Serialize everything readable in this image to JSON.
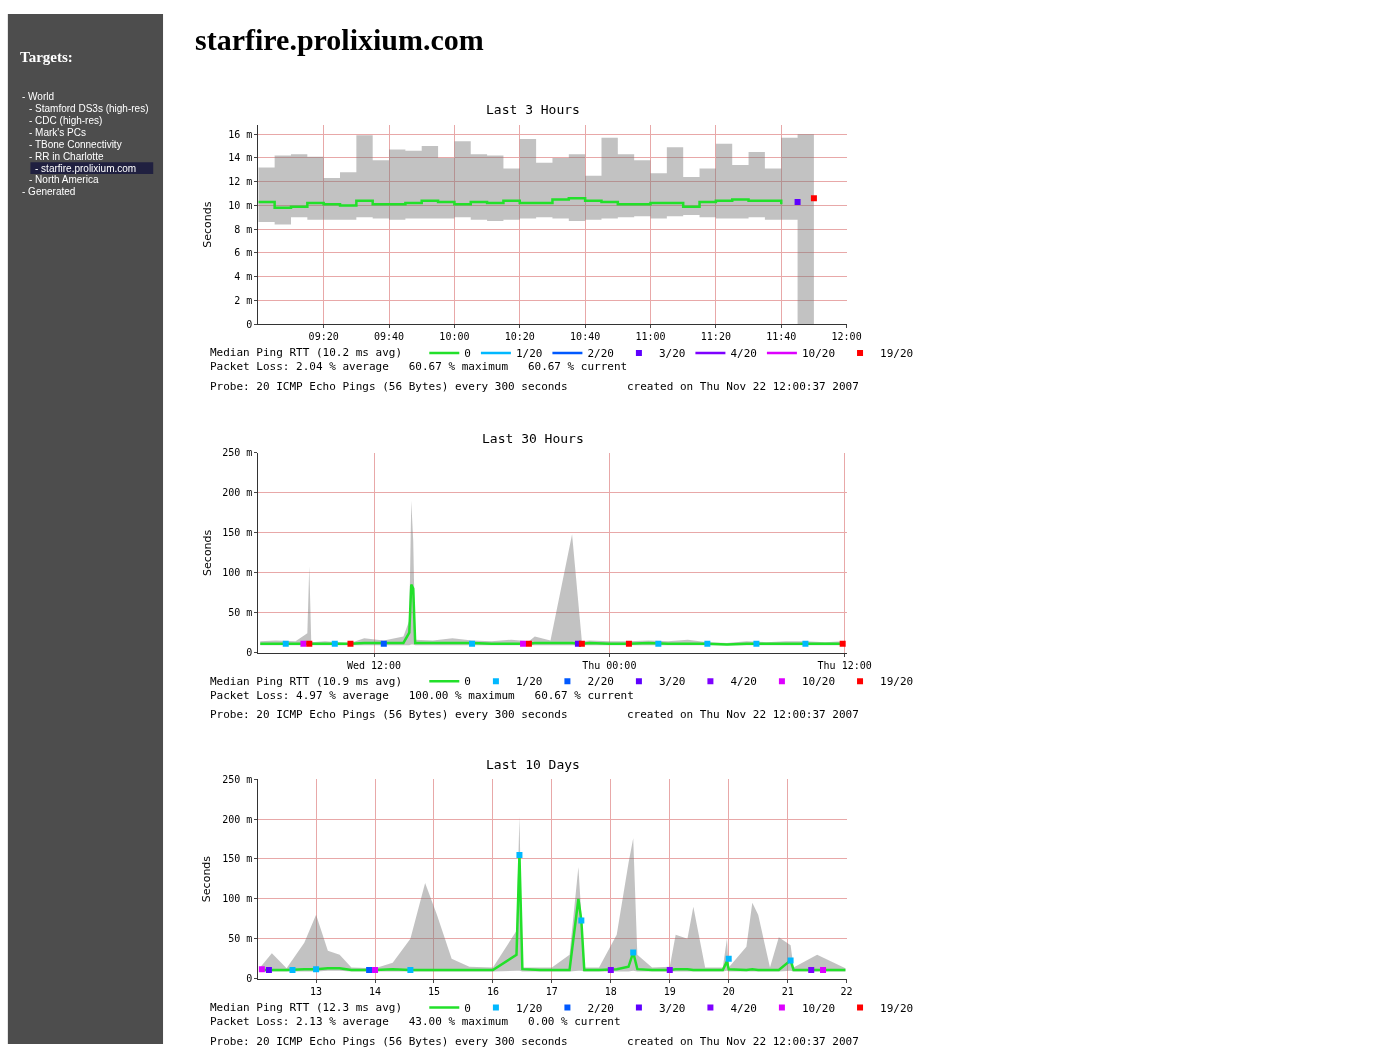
{
  "chart_data": [
    {
      "type": "other",
      "title": "Targets:",
      "annotations": [
        "- World",
        "- Stamford DS3s (high-res)",
        "- CDC (high-res)",
        "- Mark's PCs",
        "- TBone Connectivity",
        "- RR in Charlotte",
        "- starfire.prolixium.com",
        "- North America",
        "- Generated"
      ]
    },
    {
      "type": "step",
      "title": "starfire.prolixium.com",
      "subtitle": "Last 3 Hours",
      "ylabel": "Seconds",
      "x": [
        9.0,
        9.0833,
        9.1667,
        9.25,
        9.3333,
        9.4167,
        9.5,
        9.5833,
        9.6667,
        9.75,
        9.8333,
        9.9167,
        10.0,
        10.0833,
        10.1667,
        10.25,
        10.3333,
        10.4167,
        10.5,
        10.5833,
        10.6667,
        10.75,
        10.8333,
        10.9167,
        11.0,
        11.0833,
        11.1667,
        11.25,
        11.3333,
        11.4167,
        11.5,
        11.5833,
        11.6667,
        11.75,
        11.8333
      ],
      "xlim": [
        9.0,
        12.0
      ],
      "xticks": [
        {
          "value": 9.3333,
          "label": "09:20"
        },
        {
          "value": 9.6667,
          "label": "09:40"
        },
        {
          "value": 10,
          "label": "10:00"
        },
        {
          "value": 10.3333,
          "label": "10:20"
        },
        {
          "value": 10.6667,
          "label": "10:40"
        },
        {
          "value": 11,
          "label": "11:00"
        },
        {
          "value": 11.3333,
          "label": "11:20"
        },
        {
          "value": 11.6667,
          "label": "11:40"
        },
        {
          "value": 12,
          "label": "12:00"
        }
      ],
      "ylim": [
        0,
        16.8
      ],
      "yticks": [
        0,
        {
          "value": 2,
          "label": "2 m"
        },
        {
          "value": 4,
          "label": "4 m"
        },
        {
          "value": 6,
          "label": "6 m"
        },
        {
          "value": 8,
          "label": "8 m"
        },
        {
          "value": 10,
          "label": "10 m"
        },
        {
          "value": 12,
          "label": "12 m"
        },
        {
          "value": 14,
          "label": "14 m"
        },
        {
          "value": 16,
          "label": "16 m"
        }
      ],
      "series": [
        {
          "name": "0",
          "color": "#22e02a",
          "values": [
            10.3,
            9.8,
            9.9,
            10.2,
            10.1,
            10.0,
            10.4,
            10.1,
            10.1,
            10.2,
            10.4,
            10.3,
            10.1,
            10.3,
            10.2,
            10.4,
            10.2,
            10.2,
            10.5,
            10.6,
            10.4,
            10.3,
            10.1,
            10.1,
            10.2,
            10.2,
            9.9,
            10.3,
            10.4,
            10.5,
            10.4,
            10.4,
            10.1,
            null,
            null
          ],
          "lower": [
            9.0,
            8.6,
            8.4,
            9.0,
            8.8,
            8.8,
            8.8,
            9.0,
            8.9,
            8.8,
            8.9,
            8.9,
            8.9,
            9.0,
            8.8,
            8.7,
            8.8,
            8.9,
            9.0,
            8.9,
            8.7,
            8.8,
            8.9,
            9.0,
            9.1,
            8.9,
            9.1,
            9.2,
            9.0,
            8.9,
            8.9,
            9.0,
            8.8,
            8.8,
            0
          ],
          "upper": [
            13.2,
            14.2,
            14.3,
            14.1,
            12.3,
            12.8,
            15.9,
            13.8,
            14.7,
            14.6,
            15.0,
            14.0,
            15.4,
            14.3,
            14.2,
            13.1,
            15.6,
            13.6,
            14.0,
            14.3,
            12.5,
            15.7,
            14.3,
            13.8,
            12.7,
            14.9,
            12.4,
            13.1,
            15.2,
            13.4,
            14.5,
            13.1,
            15.7,
            16.0,
            14.0
          ]
        },
        {
          "name": "1/20",
          "color": "#00b8ff",
          "values": [
            null,
            null,
            null,
            null,
            null,
            null,
            null,
            null,
            null,
            null,
            null,
            null,
            null,
            null,
            null,
            null,
            null,
            null,
            null,
            null,
            null,
            null,
            null,
            null,
            null,
            null,
            null,
            null,
            null,
            null,
            null,
            null,
            null,
            null,
            null
          ]
        },
        {
          "name": "2/20",
          "color": "#0059ff",
          "values": [
            null,
            null,
            null,
            null,
            null,
            null,
            null,
            null,
            null,
            null,
            null,
            null,
            null,
            null,
            null,
            null,
            null,
            null,
            null,
            null,
            null,
            null,
            null,
            null,
            null,
            null,
            null,
            null,
            null,
            null,
            null,
            null,
            null,
            null,
            null
          ]
        },
        {
          "name": "3/20",
          "color": "#5e00ff",
          "type": "scatter",
          "marker": "square",
          "values": [
            null,
            null,
            null,
            null,
            null,
            null,
            null,
            null,
            null,
            null,
            null,
            null,
            null,
            null,
            null,
            null,
            null,
            null,
            null,
            null,
            null,
            null,
            null,
            null,
            null,
            null,
            null,
            null,
            null,
            null,
            null,
            null,
            null,
            10.3,
            null
          ]
        },
        {
          "name": "4/20",
          "color": "#7e00ff",
          "values": [
            null,
            null,
            null,
            null,
            null,
            null,
            null,
            null,
            null,
            null,
            null,
            null,
            null,
            null,
            null,
            null,
            null,
            null,
            null,
            null,
            null,
            null,
            null,
            null,
            null,
            null,
            null,
            null,
            null,
            null,
            null,
            null,
            null,
            null,
            null
          ]
        },
        {
          "name": "10/20",
          "color": "#dd00ff",
          "values": [
            null,
            null,
            null,
            null,
            null,
            null,
            null,
            null,
            null,
            null,
            null,
            null,
            null,
            null,
            null,
            null,
            null,
            null,
            null,
            null,
            null,
            null,
            null,
            null,
            null,
            null,
            null,
            null,
            null,
            null,
            null,
            null,
            null,
            null,
            null
          ]
        },
        {
          "name": "19/20",
          "color": "#ff0000",
          "type": "scatter",
          "marker": "square",
          "values": [
            null,
            null,
            null,
            null,
            null,
            null,
            null,
            null,
            null,
            null,
            null,
            null,
            null,
            null,
            null,
            null,
            null,
            null,
            null,
            null,
            null,
            null,
            null,
            null,
            null,
            null,
            null,
            null,
            null,
            null,
            null,
            null,
            null,
            null,
            10.6
          ]
        }
      ],
      "grid": true,
      "legend": "bottom",
      "annotations": [
        "Median Ping RTT (10.2 ms avg)",
        "Packet Loss: 2.04 % average   60.67 % maximum   60.67 % current",
        "Probe: 20 ICMP Echo Pings (56 Bytes) every 300 seconds",
        "created on Thu Nov 22 12:00:37 2007"
      ]
    },
    {
      "type": "line",
      "subtitle": "Last 30 Hours",
      "ylabel": "Seconds",
      "x": [
        "2007-11-21T06:12",
        "2007-11-21T07:00",
        "2007-11-21T08:00",
        "2007-11-21T08:36",
        "2007-11-21T08:42",
        "2007-11-21T08:48",
        "2007-11-21T09:30",
        "2007-11-21T10:48",
        "2007-11-21T11:30",
        "2007-11-21T12:30",
        "2007-11-21T13:30",
        "2007-11-21T13:48",
        "2007-11-21T13:54",
        "2007-11-21T14:00",
        "2007-11-21T14:06",
        "2007-11-21T15:00",
        "2007-11-21T16:00",
        "2007-11-21T17:00",
        "2007-11-21T18:00",
        "2007-11-21T19:00",
        "2007-11-21T19:54",
        "2007-11-21T20:12",
        "2007-11-21T21:00",
        "2007-11-21T22:06",
        "2007-11-21T22:36",
        "2007-11-21T23:00",
        "2007-11-22T00:00",
        "2007-11-22T01:00",
        "2007-11-22T02:00",
        "2007-11-22T03:00",
        "2007-11-22T04:00",
        "2007-11-22T05:00",
        "2007-11-22T06:00",
        "2007-11-22T07:00",
        "2007-11-22T08:00",
        "2007-11-22T09:00",
        "2007-11-22T10:00",
        "2007-11-22T11:00",
        "2007-11-22T11:54"
      ],
      "xlim": [
        "2007-11-21T06:06",
        "2007-11-22T12:06"
      ],
      "xticks": [
        {
          "value": "2007-11-21T12:00",
          "label": "Wed 12:00"
        },
        {
          "value": "2007-11-22T00:00",
          "label": "Thu 00:00"
        },
        {
          "value": "2007-11-22T12:00",
          "label": "Thu 12:00"
        }
      ],
      "ylim": [
        0,
        250
      ],
      "yticks": [
        0,
        {
          "value": 50,
          "label": "50 m"
        },
        {
          "value": 100,
          "label": "100 m"
        },
        {
          "value": 150,
          "label": "150 m"
        },
        {
          "value": 200,
          "label": "200 m"
        },
        {
          "value": 250,
          "label": "250 m"
        }
      ],
      "series": [
        {
          "name": "0",
          "color": "#22e02a",
          "values": [
            11,
            11,
            11,
            11,
            10,
            11,
            11,
            11,
            12,
            12,
            12,
            25,
            85,
            80,
            12,
            12,
            12,
            12,
            11,
            11,
            11,
            12,
            12,
            12,
            11,
            12,
            11,
            11,
            12,
            11,
            11,
            11,
            10,
            11,
            11,
            11,
            11,
            11,
            11
          ],
          "lower": [
            9,
            9,
            9,
            9,
            9,
            9,
            9,
            9,
            9,
            9,
            9,
            9,
            10,
            10,
            9,
            9,
            9,
            9,
            9,
            9,
            9,
            9,
            9,
            9,
            9,
            9,
            9,
            9,
            9,
            9,
            9,
            9,
            9,
            9,
            9,
            9,
            9,
            9,
            9
          ],
          "upper": [
            14,
            15,
            14,
            24,
            108,
            13,
            14,
            12,
            18,
            15,
            20,
            40,
            190,
            140,
            16,
            15,
            18,
            15,
            14,
            16,
            14,
            20,
            15,
            148,
            14,
            15,
            14,
            14,
            15,
            14,
            16,
            13,
            12,
            14,
            13,
            14,
            14,
            13,
            14
          ]
        },
        {
          "name": "1/20",
          "color": "#00b8ff",
          "type": "scatter",
          "marker": "square",
          "x": [
            "2007-11-21T07:30",
            "2007-11-21T10:00",
            "2007-11-21T17:00",
            "2007-11-22T02:30",
            "2007-11-22T05:00",
            "2007-11-22T07:30",
            "2007-11-22T10:00"
          ],
          "values": [
            11,
            11,
            11,
            11,
            11,
            11,
            11
          ]
        },
        {
          "name": "2/20",
          "color": "#0059ff",
          "type": "scatter",
          "marker": "square",
          "x": [
            "2007-11-21T12:30"
          ],
          "values": [
            11
          ]
        },
        {
          "name": "3/20",
          "color": "#5e00ff",
          "type": "scatter",
          "marker": "square",
          "x": [
            "2007-11-21T22:24"
          ],
          "values": [
            11
          ]
        },
        {
          "name": "4/20",
          "color": "#7e00ff",
          "type": "scatter",
          "marker": "square",
          "values": [
            null,
            null,
            null,
            null,
            null,
            null,
            null,
            null,
            null,
            null,
            null,
            null,
            null,
            null,
            null,
            null,
            null,
            null,
            null,
            null,
            null,
            null,
            null,
            null,
            null,
            null,
            null,
            null,
            null,
            null,
            null,
            null,
            null,
            null,
            null,
            null,
            null,
            null,
            null
          ]
        },
        {
          "name": "10/20",
          "color": "#dd00ff",
          "type": "scatter",
          "marker": "square",
          "x": [
            "2007-11-21T08:24",
            "2007-11-21T19:36"
          ],
          "values": [
            11,
            11
          ]
        },
        {
          "name": "19/20",
          "color": "#ff0000",
          "type": "scatter",
          "marker": "square",
          "x": [
            "2007-11-21T08:42",
            "2007-11-21T10:48",
            "2007-11-21T19:54",
            "2007-11-21T22:36",
            "2007-11-22T01:00",
            "2007-11-22T11:54"
          ],
          "values": [
            11,
            11,
            11,
            11,
            11,
            11
          ]
        }
      ],
      "grid": true,
      "legend": "bottom",
      "annotations": [
        "Median Ping RTT (10.9 ms avg)",
        "Packet Loss: 4.97 % average   100.00 % maximum   60.67 % current",
        "Probe: 20 ICMP Echo Pings (56 Bytes) every 300 seconds",
        "created on Thu Nov 22 12:00:37 2007"
      ]
    },
    {
      "type": "line",
      "subtitle": "Last 10 Days",
      "ylabel": "Seconds",
      "x": [
        12.05,
        12.25,
        12.5,
        12.8,
        13.0,
        13.2,
        13.4,
        13.6,
        14.0,
        14.3,
        14.6,
        14.85,
        15.05,
        15.3,
        15.6,
        16.0,
        16.4,
        16.45,
        16.5,
        16.8,
        17.0,
        17.3,
        17.45,
        17.5,
        17.55,
        17.8,
        18.1,
        18.3,
        18.38,
        18.45,
        18.7,
        19.0,
        19.1,
        19.3,
        19.4,
        19.6,
        19.9,
        19.97,
        20.0,
        20.3,
        20.4,
        20.5,
        20.7,
        20.85,
        21.05,
        21.1,
        21.5,
        21.98
      ],
      "xlim": [
        12.02,
        22
      ],
      "xticks": [
        13,
        14,
        15,
        16,
        17,
        18,
        19,
        20,
        21,
        22
      ],
      "ylim": [
        0,
        250
      ],
      "yticks": [
        0,
        {
          "value": 50,
          "label": "50 m"
        },
        {
          "value": 100,
          "label": "100 m"
        },
        {
          "value": 150,
          "label": "150 m"
        },
        {
          "value": 200,
          "label": "200 m"
        },
        {
          "value": 250,
          "label": "250 m"
        }
      ],
      "series": [
        {
          "name": "0",
          "color": "#22e02a",
          "values": [
            11,
            11,
            11,
            12,
            12,
            13,
            13,
            11,
            11,
            12,
            11,
            11,
            11,
            11,
            11,
            11,
            30,
            155,
            12,
            11,
            11,
            11,
            100,
            73,
            11,
            11,
            12,
            15,
            33,
            12,
            11,
            11,
            12,
            12,
            11,
            11,
            11,
            22,
            12,
            11,
            12,
            11,
            11,
            11,
            23,
            11,
            11,
            11
          ],
          "lower": [
            9,
            9,
            9,
            9,
            9,
            10,
            10,
            9,
            9,
            9,
            9,
            9,
            9,
            9,
            9,
            9,
            10,
            10,
            9,
            9,
            9,
            9,
            10,
            10,
            9,
            9,
            9,
            9,
            10,
            9,
            9,
            9,
            9,
            9,
            9,
            9,
            9,
            10,
            9,
            9,
            9,
            9,
            9,
            9,
            10,
            9,
            9,
            9
          ],
          "upper": [
            14,
            32,
            13,
            45,
            80,
            35,
            30,
            14,
            13,
            20,
            50,
            120,
            80,
            25,
            15,
            14,
            60,
            203,
            14,
            14,
            14,
            30,
            140,
            80,
            14,
            14,
            55,
            145,
            176,
            30,
            14,
            15,
            55,
            50,
            90,
            14,
            14,
            50,
            14,
            40,
            95,
            80,
            14,
            52,
            42,
            14,
            30,
            13
          ]
        },
        {
          "name": "1/20",
          "color": "#00b8ff",
          "type": "scatter",
          "marker": "square",
          "x": [
            12.6,
            13.0,
            14.6,
            16.45,
            17.5,
            18.38,
            20.0,
            21.05
          ],
          "values": [
            11,
            12,
            11,
            155,
            73,
            33,
            25,
            23
          ]
        },
        {
          "name": "2/20",
          "color": "#0059ff",
          "type": "scatter",
          "marker": "square",
          "x": [
            13.9
          ],
          "values": [
            11
          ]
        },
        {
          "name": "3/20",
          "color": "#5e00ff",
          "type": "scatter",
          "marker": "square",
          "x": [
            12.2
          ],
          "values": [
            11
          ]
        },
        {
          "name": "4/20",
          "color": "#7e00ff",
          "type": "scatter",
          "marker": "square",
          "x": [
            18.0,
            19.0,
            21.4
          ],
          "values": [
            11,
            11,
            11
          ]
        },
        {
          "name": "10/20",
          "color": "#dd00ff",
          "type": "scatter",
          "marker": "square",
          "x": [
            12.08,
            14.0,
            21.6
          ],
          "values": [
            12,
            11,
            11
          ]
        },
        {
          "name": "19/20",
          "color": "#ff0000",
          "type": "scatter",
          "marker": "square",
          "values": [
            null,
            null,
            null,
            null,
            null,
            null,
            null,
            null,
            null,
            null,
            null,
            null,
            null,
            null,
            null,
            null,
            null,
            null,
            null,
            null,
            null,
            null,
            null,
            null,
            null,
            null,
            null,
            null,
            null,
            null,
            null,
            null,
            null,
            null,
            null,
            null,
            null,
            null,
            null,
            null,
            null,
            null,
            null,
            null,
            null,
            null,
            null,
            null
          ]
        }
      ],
      "grid": true,
      "legend": "bottom",
      "annotations": [
        "Median Ping RTT (12.3 ms avg)",
        "Packet Loss: 2.13 % average   43.00 % maximum   0.00 % current",
        "Probe: 20 ICMP Echo Pings (56 Bytes) every 300 seconds",
        "created on Thu Nov 22 12:00:37 2007"
      ]
    }
  ]
}
